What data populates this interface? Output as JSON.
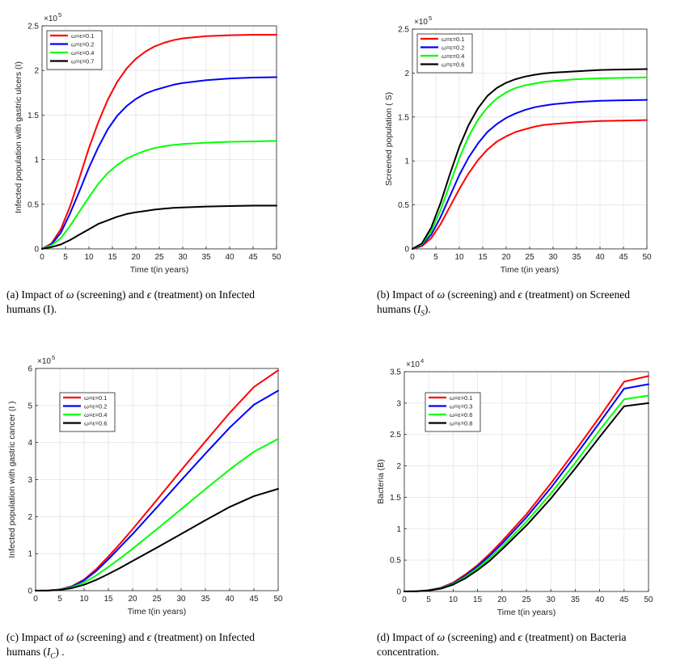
{
  "chart_data": [
    {
      "id": "a",
      "type": "line",
      "ylabel": "Infected population with gastric ulcers (I)",
      "xlabel": "Time t(in years)",
      "multiplier": "×10",
      "exponent": "5",
      "xlim": [
        0,
        50
      ],
      "ylim": [
        0,
        2.5
      ],
      "xticks": [
        "0",
        "5",
        "10",
        "15",
        "20",
        "25",
        "30",
        "35",
        "40",
        "45",
        "50"
      ],
      "xtick_values": [
        0,
        5,
        10,
        15,
        20,
        25,
        30,
        35,
        40,
        45,
        50
      ],
      "yticks": [
        "0",
        "0.5",
        "1",
        "1.5",
        "2",
        "2.5"
      ],
      "ytick_values": [
        0,
        0.5,
        1,
        1.5,
        2,
        2.5
      ],
      "grid": true,
      "legend": "top-left",
      "x": [
        0,
        2,
        4,
        6,
        8,
        10,
        12,
        14,
        16,
        18,
        20,
        22,
        24,
        26,
        28,
        30,
        35,
        40,
        45,
        50
      ],
      "series": [
        {
          "name": "ω=ε=0.1",
          "color": "#ff0000",
          "values": [
            0,
            0.06,
            0.22,
            0.48,
            0.8,
            1.13,
            1.42,
            1.67,
            1.87,
            2.02,
            2.13,
            2.21,
            2.27,
            2.31,
            2.34,
            2.36,
            2.385,
            2.395,
            2.4,
            2.4
          ]
        },
        {
          "name": "ω=ε=0.2",
          "color": "#0000ff",
          "values": [
            0,
            0.05,
            0.18,
            0.4,
            0.65,
            0.91,
            1.14,
            1.34,
            1.49,
            1.6,
            1.68,
            1.74,
            1.78,
            1.81,
            1.84,
            1.86,
            1.89,
            1.91,
            1.92,
            1.925
          ]
        },
        {
          "name": "ω=ε=0.4",
          "color": "#00ff00",
          "values": [
            0,
            0.04,
            0.12,
            0.26,
            0.42,
            0.58,
            0.73,
            0.85,
            0.94,
            1.01,
            1.06,
            1.1,
            1.13,
            1.15,
            1.165,
            1.175,
            1.19,
            1.2,
            1.205,
            1.21
          ]
        },
        {
          "name": "ω=ε=0.7",
          "color": "#000000",
          "values": [
            0,
            0.02,
            0.05,
            0.1,
            0.16,
            0.22,
            0.28,
            0.32,
            0.36,
            0.39,
            0.41,
            0.425,
            0.44,
            0.45,
            0.46,
            0.465,
            0.475,
            0.48,
            0.485,
            0.485
          ]
        }
      ]
    },
    {
      "id": "b",
      "type": "line",
      "ylabel": "Screened population ( S)",
      "xlabel": "Time t(in years)",
      "multiplier": "×10",
      "exponent": "5",
      "xlim": [
        0,
        50
      ],
      "ylim": [
        0,
        2.5
      ],
      "xticks": [
        "0",
        "5",
        "10",
        "15",
        "20",
        "25",
        "30",
        "35",
        "40",
        "45",
        "50"
      ],
      "xtick_values": [
        0,
        5,
        10,
        15,
        20,
        25,
        30,
        35,
        40,
        45,
        50
      ],
      "yticks": [
        "0",
        "0.5",
        "1",
        "1.5",
        "2",
        "2.5"
      ],
      "ytick_values": [
        0,
        0.5,
        1,
        1.5,
        2,
        2.5
      ],
      "grid": true,
      "legend": "top-left",
      "x": [
        0,
        2,
        4,
        6,
        8,
        10,
        12,
        14,
        16,
        18,
        20,
        22,
        24,
        26,
        28,
        30,
        35,
        40,
        45,
        50
      ],
      "series": [
        {
          "name": "ω=ε=0.1",
          "color": "#ff0000",
          "values": [
            0,
            0.03,
            0.12,
            0.28,
            0.48,
            0.68,
            0.86,
            1.01,
            1.13,
            1.22,
            1.28,
            1.33,
            1.36,
            1.39,
            1.41,
            1.42,
            1.44,
            1.455,
            1.46,
            1.465
          ]
        },
        {
          "name": "ω=ε=0.2",
          "color": "#0000ff",
          "values": [
            0,
            0.04,
            0.16,
            0.36,
            0.6,
            0.84,
            1.04,
            1.2,
            1.33,
            1.42,
            1.49,
            1.54,
            1.58,
            1.61,
            1.63,
            1.645,
            1.67,
            1.685,
            1.69,
            1.695
          ]
        },
        {
          "name": "ω=ε=0.4",
          "color": "#00ff00",
          "values": [
            0,
            0.05,
            0.2,
            0.44,
            0.74,
            1.03,
            1.28,
            1.47,
            1.61,
            1.71,
            1.78,
            1.83,
            1.86,
            1.88,
            1.9,
            1.91,
            1.93,
            1.94,
            1.945,
            1.95
          ]
        },
        {
          "name": "ω=ε=0.6",
          "color": "#000000",
          "values": [
            0,
            0.06,
            0.24,
            0.52,
            0.85,
            1.16,
            1.41,
            1.6,
            1.74,
            1.83,
            1.89,
            1.93,
            1.96,
            1.98,
            1.995,
            2.005,
            2.02,
            2.035,
            2.04,
            2.045
          ]
        }
      ]
    },
    {
      "id": "c",
      "type": "line",
      "ylabel": "Infected population with gastric cancer (I )",
      "xlabel": "Time t(in years)",
      "multiplier": "×10",
      "exponent": "5",
      "xlim": [
        0,
        50
      ],
      "ylim": [
        0,
        6
      ],
      "xticks": [
        "0",
        "5",
        "10",
        "15",
        "20",
        "25",
        "30",
        "35",
        "40",
        "45",
        "50"
      ],
      "xtick_values": [
        0,
        5,
        10,
        15,
        20,
        25,
        30,
        35,
        40,
        45,
        50
      ],
      "yticks": [
        "0",
        "1",
        "2",
        "3",
        "4",
        "5",
        "6"
      ],
      "ytick_values": [
        0,
        1,
        2,
        3,
        4,
        5,
        6
      ],
      "grid": true,
      "legend": "top-left",
      "x": [
        0,
        2.5,
        5,
        7.5,
        10,
        12.5,
        15,
        17.5,
        20,
        25,
        30,
        35,
        40,
        45,
        50
      ],
      "series": [
        {
          "name": "ω=ε=0.1",
          "color": "#ff0000",
          "values": [
            0,
            0.005,
            0.03,
            0.12,
            0.3,
            0.58,
            0.92,
            1.28,
            1.66,
            2.45,
            3.25,
            4.03,
            4.8,
            5.5,
            5.95
          ]
        },
        {
          "name": "ω=ε=0.2",
          "color": "#0000ff",
          "values": [
            0,
            0.005,
            0.03,
            0.11,
            0.28,
            0.53,
            0.85,
            1.19,
            1.53,
            2.25,
            2.98,
            3.7,
            4.4,
            5.02,
            5.4
          ]
        },
        {
          "name": "ω=ε=0.4",
          "color": "#00ff00",
          "values": [
            0,
            0.004,
            0.025,
            0.09,
            0.22,
            0.41,
            0.64,
            0.88,
            1.13,
            1.66,
            2.2,
            2.74,
            3.27,
            3.75,
            4.1
          ]
        },
        {
          "name": "ω=ε=0.6",
          "color": "#000000",
          "values": [
            0,
            0.003,
            0.02,
            0.07,
            0.16,
            0.29,
            0.45,
            0.62,
            0.8,
            1.16,
            1.53,
            1.9,
            2.26,
            2.55,
            2.75
          ]
        }
      ]
    },
    {
      "id": "d",
      "type": "line",
      "ylabel": "Bacteria (B)",
      "xlabel": "Time t(in years)",
      "multiplier": "×10",
      "exponent": "4",
      "xlim": [
        0,
        50
      ],
      "ylim": [
        0,
        3.5
      ],
      "xticks": [
        "0",
        "5",
        "10",
        "15",
        "20",
        "25",
        "30",
        "35",
        "40",
        "45",
        "50"
      ],
      "xtick_values": [
        0,
        5,
        10,
        15,
        20,
        25,
        30,
        35,
        40,
        45,
        50
      ],
      "yticks": [
        "0",
        "0.5",
        "1",
        "1.5",
        "2",
        "2.5",
        "3",
        "3.5"
      ],
      "ytick_values": [
        0,
        0.5,
        1,
        1.5,
        2,
        2.5,
        3,
        3.5
      ],
      "grid": true,
      "legend": "top-right",
      "x": [
        0,
        2.5,
        5,
        7.5,
        10,
        12.5,
        15,
        17.5,
        20,
        25,
        30,
        35,
        40,
        45,
        50
      ],
      "series": [
        {
          "name": "ω=ε=0.1",
          "color": "#ff0000",
          "values": [
            0,
            0.003,
            0.02,
            0.06,
            0.14,
            0.27,
            0.42,
            0.6,
            0.8,
            1.23,
            1.72,
            2.24,
            2.78,
            3.34,
            3.43
          ]
        },
        {
          "name": "ω=ε=0.3",
          "color": "#0000ff",
          "values": [
            0,
            0.003,
            0.018,
            0.055,
            0.13,
            0.25,
            0.4,
            0.57,
            0.76,
            1.18,
            1.65,
            2.16,
            2.69,
            3.23,
            3.3
          ]
        },
        {
          "name": "ω=ε=0.6",
          "color": "#00ff00",
          "values": [
            0,
            0.003,
            0.016,
            0.05,
            0.12,
            0.23,
            0.37,
            0.53,
            0.71,
            1.11,
            1.56,
            2.05,
            2.57,
            3.06,
            3.12
          ]
        },
        {
          "name": "ω=ε=0.8",
          "color": "#000000",
          "values": [
            0,
            0.002,
            0.014,
            0.045,
            0.11,
            0.21,
            0.34,
            0.49,
            0.67,
            1.05,
            1.48,
            1.96,
            2.46,
            2.95,
            3.0
          ]
        }
      ]
    }
  ],
  "captions": {
    "a": {
      "label": "(a)",
      "pre": "Impact of",
      "omega": "ω",
      "mid1": "(screening) and",
      "eps": "ϵ",
      "mid2": "(treatment) on Infected",
      "line2": "humans (I)."
    },
    "b": {
      "label": "(b)",
      "pre": "Impact of",
      "omega": "ω",
      "mid1": "(screening) and",
      "eps": "ϵ",
      "mid2": "(treatment) on Screened",
      "line2a": "humans (",
      "sym": "I",
      "sub": "S",
      "line2b": ")."
    },
    "c": {
      "label": "(c)",
      "pre": "Impact of",
      "omega": "ω",
      "mid1": "(screening) and",
      "eps": "ϵ",
      "mid2": "(treatment) on Infected",
      "line2a": "humans (",
      "sym": "I",
      "sub": "C",
      "line2b": ") ."
    },
    "d": {
      "label": "(d)",
      "pre": "Impact of",
      "omega": "ω",
      "mid1": "(screening) and",
      "eps": "ϵ",
      "mid2": "(treatment) on Bacteria",
      "line2": "concentration."
    }
  }
}
